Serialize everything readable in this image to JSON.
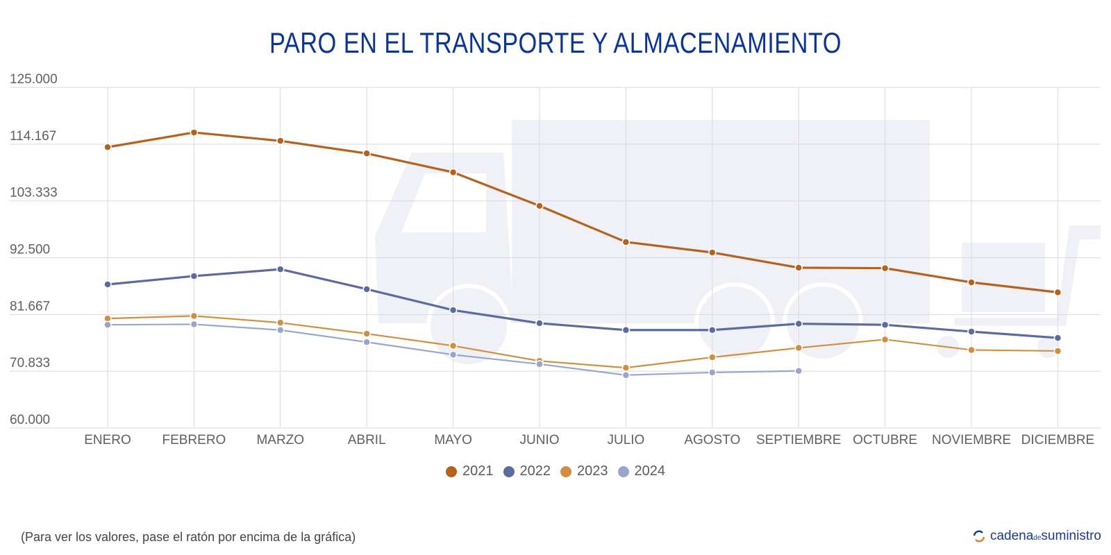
{
  "title": "PARO EN EL TRANSPORTE Y ALMACENAMIENTO",
  "footnote": "(Para ver los valores, pase el ratón por encima de la gráfica)",
  "brand": {
    "part1": "cadena",
    "part2": "de",
    "part3": "suministro",
    "icon": "refresh-circle-icon"
  },
  "chart_data": {
    "type": "line",
    "title": "PARO EN EL TRANSPORTE Y ALMACENAMIENTO",
    "xlabel": "",
    "ylabel": "",
    "ylim": [
      60000,
      125000
    ],
    "yticks": [
      60000,
      70833,
      81667,
      92500,
      103333,
      114167,
      125000
    ],
    "ytick_labels": [
      "60.000",
      "70.833",
      "81.667",
      "92.500",
      "103.333",
      "114.167",
      "125.000"
    ],
    "grid": true,
    "legend_position": "bottom",
    "categories": [
      "ENERO",
      "FEBRERO",
      "MARZO",
      "ABRIL",
      "MAYO",
      "JUNIO",
      "JULIO",
      "AGOSTO",
      "SEPTIEMBRE",
      "OCTUBRE",
      "NOVIEMBRE",
      "DICIEMBRE"
    ],
    "series": [
      {
        "name": "2021",
        "color": "#b5621e",
        "values": [
          113600,
          116400,
          114800,
          112400,
          108800,
          102400,
          95500,
          93500,
          90600,
          90500,
          87800,
          85900
        ]
      },
      {
        "name": "2022",
        "color": "#5b6b9e",
        "values": [
          87400,
          89000,
          90300,
          86500,
          82500,
          80000,
          78700,
          78700,
          79900,
          79700,
          78400,
          77200
        ]
      },
      {
        "name": "2023",
        "color": "#d08f40",
        "values": [
          80900,
          81400,
          80100,
          78000,
          75700,
          72800,
          71500,
          73500,
          75300,
          76900,
          74900,
          74700
        ]
      },
      {
        "name": "2024",
        "color": "#9aa5cb",
        "values": [
          79700,
          79800,
          78700,
          76400,
          74000,
          72200,
          70100,
          70600,
          70900
        ]
      }
    ]
  }
}
